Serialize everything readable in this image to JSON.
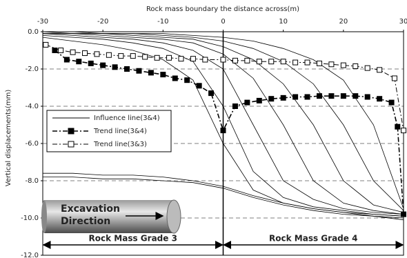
{
  "chart_data": {
    "type": "line",
    "x_label": "Rock mass boundary the distance across(m)",
    "y_label": "Vertical displacements(mm)",
    "xlim": [
      -30,
      30
    ],
    "xticks": [
      -30,
      -20,
      -10,
      0,
      10,
      20,
      30
    ],
    "ylim": [
      -12,
      0
    ],
    "yticks": [
      {
        "value": 0,
        "label": "0.0"
      },
      {
        "value": -2,
        "label": "-2.0"
      },
      {
        "value": -4,
        "label": "-4.0"
      },
      {
        "value": -6,
        "label": "-6.0"
      },
      {
        "value": -8,
        "label": "-8.0"
      },
      {
        "value": -10,
        "label": "-10.0"
      },
      {
        "value": -12,
        "label": "-12.0"
      }
    ],
    "grid": true,
    "boundary_x": 0,
    "series": [
      {
        "name": "Influence line(3&4)",
        "color": "#000000",
        "x": [
          -30,
          -25,
          -20,
          -15,
          -10,
          -5,
          0,
          5,
          10,
          15,
          20,
          25,
          30
        ],
        "lines": [
          [
            -7.6,
            -7.6,
            -7.7,
            -7.7,
            -7.8,
            -8.0,
            -8.3,
            -8.8,
            -9.2,
            -9.5,
            -9.7,
            -9.9,
            -10.0
          ],
          [
            -7.8,
            -7.8,
            -7.9,
            -7.9,
            -8.0,
            -8.1,
            -8.4,
            -8.9,
            -9.3,
            -9.6,
            -9.8,
            -9.9,
            -10.1
          ],
          [
            -0.3,
            -0.5,
            -0.7,
            -1.0,
            -1.5,
            -2.6,
            -6.0,
            -8.5,
            -9.2,
            -9.5,
            -9.7,
            -9.8,
            -9.9
          ],
          [
            -0.2,
            -0.3,
            -0.4,
            -0.6,
            -0.9,
            -1.6,
            -4.0,
            -7.5,
            -8.9,
            -9.4,
            -9.6,
            -9.8,
            -9.9
          ],
          [
            -0.1,
            -0.2,
            -0.3,
            -0.4,
            -0.6,
            -1.0,
            -2.0,
            -5.0,
            -8.0,
            -9.0,
            -9.5,
            -9.7,
            -9.8
          ],
          [
            -0.1,
            -0.1,
            -0.2,
            -0.3,
            -0.4,
            -0.6,
            -1.2,
            -2.5,
            -5.0,
            -8.0,
            -9.2,
            -9.6,
            -9.8
          ],
          [
            -0.1,
            -0.1,
            -0.1,
            -0.2,
            -0.3,
            -0.4,
            -0.8,
            -1.5,
            -2.8,
            -5.0,
            -8.0,
            -9.3,
            -9.7
          ],
          [
            0,
            -0.1,
            -0.1,
            -0.1,
            -0.2,
            -0.3,
            -0.5,
            -0.9,
            -1.6,
            -2.8,
            -5.0,
            -8.0,
            -9.6
          ],
          [
            0,
            0,
            -0.1,
            -0.1,
            -0.1,
            -0.2,
            -0.3,
            -0.5,
            -0.9,
            -1.5,
            -2.6,
            -5.0,
            -9.5
          ]
        ]
      },
      {
        "name": "Trend line(3&4)",
        "color": "#000000",
        "marker": "filled",
        "x": [
          -28,
          -26,
          -24,
          -22,
          -20,
          -18,
          -16,
          -14,
          -12,
          -10,
          -8,
          -6,
          -4,
          -2,
          0,
          2,
          4,
          6,
          8,
          10,
          12,
          14,
          16,
          18,
          20,
          22,
          24,
          26,
          28,
          29,
          30
        ],
        "values": [
          -1.0,
          -1.5,
          -1.6,
          -1.7,
          -1.8,
          -1.9,
          -2.0,
          -2.1,
          -2.2,
          -2.3,
          -2.5,
          -2.6,
          -2.9,
          -3.3,
          -5.3,
          -4.0,
          -3.8,
          -3.7,
          -3.6,
          -3.55,
          -3.5,
          -3.5,
          -3.45,
          -3.45,
          -3.45,
          -3.45,
          -3.5,
          -3.6,
          -3.8,
          -5.1,
          -9.8
        ]
      },
      {
        "name": "Trend line(3&3)",
        "color": "#000000",
        "marker": "open",
        "x": [
          -29.5,
          -27,
          -25,
          -23,
          -21,
          -19,
          -17,
          -15,
          -13,
          -11,
          -9,
          -7,
          -5,
          -3,
          0,
          2,
          4,
          6,
          8,
          10,
          12,
          14,
          16,
          18,
          20,
          22,
          24,
          26,
          28.5,
          30
        ],
        "values": [
          -0.7,
          -1.0,
          -1.1,
          -1.15,
          -1.2,
          -1.25,
          -1.3,
          -1.3,
          -1.35,
          -1.4,
          -1.4,
          -1.45,
          -1.45,
          -1.5,
          -1.5,
          -1.55,
          -1.55,
          -1.6,
          -1.6,
          -1.6,
          -1.65,
          -1.65,
          -1.7,
          -1.75,
          -1.8,
          -1.85,
          -1.95,
          -2.05,
          -2.5,
          -5.3
        ]
      }
    ],
    "annotations": {
      "excavation": [
        "Excavation",
        "Direction"
      ],
      "left_zone": "Rock Mass Grade 3",
      "right_zone": "Rock Mass Grade 4"
    }
  }
}
